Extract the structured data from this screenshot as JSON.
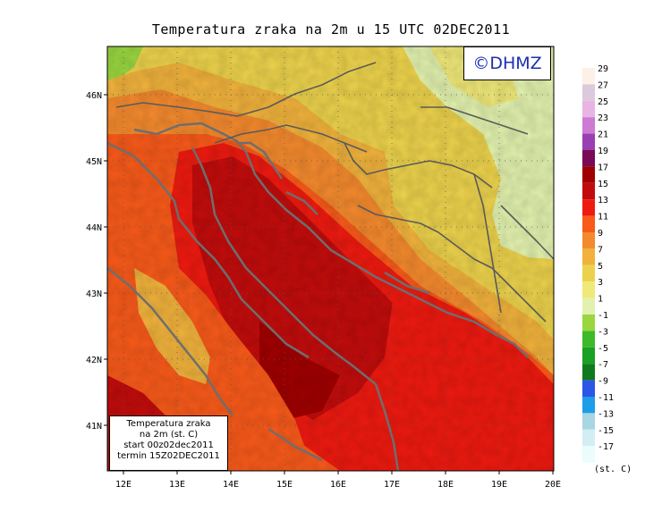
{
  "title": "Temperatura zraka na 2m u 15 UTC 02DEC2011",
  "logo_text": "©DHMZ",
  "info_box": {
    "line1": "Temperatura zraka",
    "line2": "na 2m (st. C)",
    "line3": "start 00z02dec2011",
    "line4": "termin 15Z02DEC2011"
  },
  "lon_labels": [
    "12E",
    "13E",
    "14E",
    "15E",
    "16E",
    "17E",
    "18E",
    "19E",
    "20E"
  ],
  "lat_labels": [
    "41N",
    "42N",
    "43N",
    "44N",
    "45N",
    "46N"
  ],
  "legend": {
    "unit": "(st. C)",
    "bins": [
      {
        "label": "29",
        "color": "#fdf0e6"
      },
      {
        "label": "27",
        "color": "#dccadc"
      },
      {
        "label": "25",
        "color": "#e8b4e2"
      },
      {
        "label": "23",
        "color": "#cc7ad4"
      },
      {
        "label": "21",
        "color": "#9a3fb2"
      },
      {
        "label": "19",
        "color": "#7a0a55"
      },
      {
        "label": "17",
        "color": "#a00000"
      },
      {
        "label": "15",
        "color": "#c20c0c"
      },
      {
        "label": "13",
        "color": "#ee1a10"
      },
      {
        "label": "11",
        "color": "#f85a1a"
      },
      {
        "label": "9",
        "color": "#f48a2e"
      },
      {
        "label": "7",
        "color": "#f0b23c"
      },
      {
        "label": "5",
        "color": "#ecd24c"
      },
      {
        "label": "3",
        "color": "#f0e878"
      },
      {
        "label": "1",
        "color": "#e2f2ae"
      },
      {
        "label": "-1",
        "color": "#9ad640"
      },
      {
        "label": "-3",
        "color": "#3cba2a"
      },
      {
        "label": "-5",
        "color": "#1aa022"
      },
      {
        "label": "-7",
        "color": "#0e7a1c"
      },
      {
        "label": "-9",
        "color": "#2c56e8"
      },
      {
        "label": "-11",
        "color": "#1e9ee8"
      },
      {
        "label": "-13",
        "color": "#a8d6e2"
      },
      {
        "label": "-15",
        "color": "#d2eef4"
      },
      {
        "label": "-17",
        "color": "#eafcfc"
      }
    ]
  }
}
